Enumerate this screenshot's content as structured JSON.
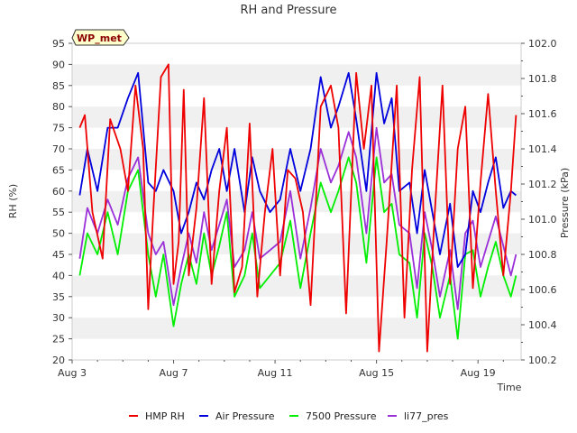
{
  "chart_data": {
    "type": "line",
    "title": "RH and Pressure",
    "badge": "WP_met",
    "xlabel": "Time",
    "ylabel_left": "RH (%)",
    "ylabel_right": "Pressure (kPa)",
    "x_range": [
      "Aug 3",
      "Aug 20.7"
    ],
    "x_ticks": [
      {
        "day": 3,
        "label": "Aug 3"
      },
      {
        "day": 7,
        "label": "Aug 7"
      },
      {
        "day": 11,
        "label": "Aug 11"
      },
      {
        "day": 15,
        "label": "Aug 15"
      },
      {
        "day": 19,
        "label": "Aug 19"
      }
    ],
    "ylim_left": [
      20,
      95
    ],
    "yticks_left": [
      20,
      25,
      30,
      35,
      40,
      45,
      50,
      55,
      60,
      65,
      70,
      75,
      80,
      85,
      90,
      95
    ],
    "ylim_right": [
      100.2,
      102.0
    ],
    "yticks_right": [
      "100.2",
      "100.4",
      "100.6",
      "100.8",
      "101.0",
      "101.2",
      "101.4",
      "101.6",
      "101.8",
      "102.0"
    ],
    "grid": "horizontal bands",
    "legend_position": "bottom",
    "series": [
      {
        "name": "HMP RH",
        "color": "#ee0000",
        "axis": "left",
        "x": [
          3.3,
          3.5,
          3.8,
          4.2,
          4.5,
          4.9,
          5.2,
          5.5,
          5.8,
          6.0,
          6.2,
          6.5,
          6.8,
          7.0,
          7.2,
          7.4,
          7.6,
          7.9,
          8.2,
          8.5,
          8.8,
          9.1,
          9.4,
          9.7,
          10.0,
          10.3,
          10.6,
          10.9,
          11.2,
          11.5,
          11.8,
          12.1,
          12.4,
          12.8,
          13.2,
          13.5,
          13.8,
          14.2,
          14.5,
          14.8,
          15.1,
          15.4,
          15.8,
          16.1,
          16.4,
          16.7,
          17.0,
          17.3,
          17.6,
          17.9,
          18.2,
          18.5,
          18.8,
          19.1,
          19.4,
          19.7,
          20.0,
          20.3,
          20.5
        ],
        "y": [
          75,
          78,
          55,
          44,
          77,
          70,
          60,
          85,
          70,
          32,
          55,
          87,
          90,
          38,
          48,
          84,
          40,
          56,
          82,
          38,
          60,
          75,
          36,
          42,
          76,
          35,
          55,
          70,
          40,
          65,
          63,
          55,
          33,
          80,
          85,
          75,
          31,
          88,
          70,
          85,
          22,
          48,
          85,
          30,
          65,
          87,
          22,
          55,
          85,
          38,
          70,
          80,
          37,
          62,
          83,
          60,
          40,
          60,
          78
        ]
      },
      {
        "name": "Air Pressure",
        "color": "#0000dd",
        "axis": "left",
        "x": [
          3.3,
          3.6,
          4.0,
          4.4,
          4.8,
          5.2,
          5.6,
          6.0,
          6.3,
          6.6,
          7.0,
          7.3,
          7.6,
          7.9,
          8.2,
          8.5,
          8.8,
          9.1,
          9.4,
          9.8,
          10.1,
          10.4,
          10.8,
          11.2,
          11.6,
          12.0,
          12.4,
          12.8,
          13.2,
          13.5,
          13.9,
          14.2,
          14.6,
          15.0,
          15.3,
          15.6,
          15.9,
          16.3,
          16.6,
          16.9,
          17.2,
          17.5,
          17.9,
          18.2,
          18.5,
          18.8,
          19.1,
          19.4,
          19.7,
          20.0,
          20.3,
          20.5
        ],
        "y": [
          59,
          70,
          60,
          75,
          75,
          82,
          88,
          62,
          60,
          65,
          60,
          50,
          55,
          62,
          58,
          65,
          70,
          60,
          70,
          55,
          68,
          60,
          55,
          58,
          70,
          60,
          70,
          87,
          75,
          80,
          88,
          77,
          60,
          88,
          76,
          82,
          60,
          62,
          50,
          65,
          55,
          45,
          57,
          42,
          45,
          60,
          55,
          62,
          68,
          56,
          60,
          59
        ]
      },
      {
        "name": "7500 Pressure",
        "color": "#00ee00",
        "axis": "left",
        "x": [
          3.3,
          3.6,
          4.0,
          4.4,
          4.8,
          5.2,
          5.6,
          6.0,
          6.3,
          6.6,
          7.0,
          7.3,
          7.6,
          7.9,
          8.2,
          8.5,
          8.8,
          9.1,
          9.4,
          9.8,
          10.1,
          10.4,
          10.8,
          11.2,
          11.6,
          12.0,
          12.4,
          12.8,
          13.2,
          13.5,
          13.9,
          14.2,
          14.6,
          15.0,
          15.3,
          15.6,
          15.9,
          16.3,
          16.6,
          16.9,
          17.2,
          17.5,
          17.9,
          18.2,
          18.5,
          18.8,
          19.1,
          19.4,
          19.7,
          20.0,
          20.3,
          20.5
        ],
        "y": [
          40,
          50,
          45,
          55,
          45,
          60,
          65,
          45,
          35,
          45,
          28,
          38,
          45,
          38,
          50,
          40,
          47,
          55,
          35,
          40,
          50,
          37,
          40,
          43,
          53,
          37,
          50,
          62,
          55,
          60,
          68,
          62,
          43,
          68,
          55,
          57,
          45,
          43,
          30,
          50,
          42,
          30,
          40,
          25,
          45,
          46,
          35,
          42,
          48,
          40,
          35,
          40
        ]
      },
      {
        "name": "li77_pres",
        "color": "#9a30d8",
        "axis": "left",
        "x": [
          3.3,
          3.6,
          4.0,
          4.4,
          4.8,
          5.2,
          5.6,
          6.0,
          6.3,
          6.6,
          7.0,
          7.3,
          7.6,
          7.9,
          8.2,
          8.5,
          8.8,
          9.1,
          9.4,
          9.8,
          10.1,
          10.4,
          10.8,
          11.2,
          11.6,
          12.0,
          12.4,
          12.8,
          13.2,
          13.5,
          13.9,
          14.2,
          14.6,
          15.0,
          15.3,
          15.6,
          15.9,
          16.3,
          16.6,
          16.9,
          17.2,
          17.5,
          17.9,
          18.2,
          18.5,
          18.8,
          19.1,
          19.4,
          19.7,
          20.0,
          20.3,
          20.5
        ],
        "y": [
          44,
          56,
          50,
          58,
          52,
          63,
          68,
          50,
          45,
          48,
          33,
          42,
          50,
          43,
          55,
          46,
          52,
          58,
          42,
          46,
          55,
          44,
          46,
          48,
          60,
          44,
          56,
          70,
          62,
          66,
          74,
          68,
          50,
          75,
          62,
          64,
          52,
          50,
          37,
          55,
          46,
          35,
          46,
          32,
          50,
          53,
          42,
          48,
          54,
          47,
          40,
          45
        ]
      }
    ]
  }
}
